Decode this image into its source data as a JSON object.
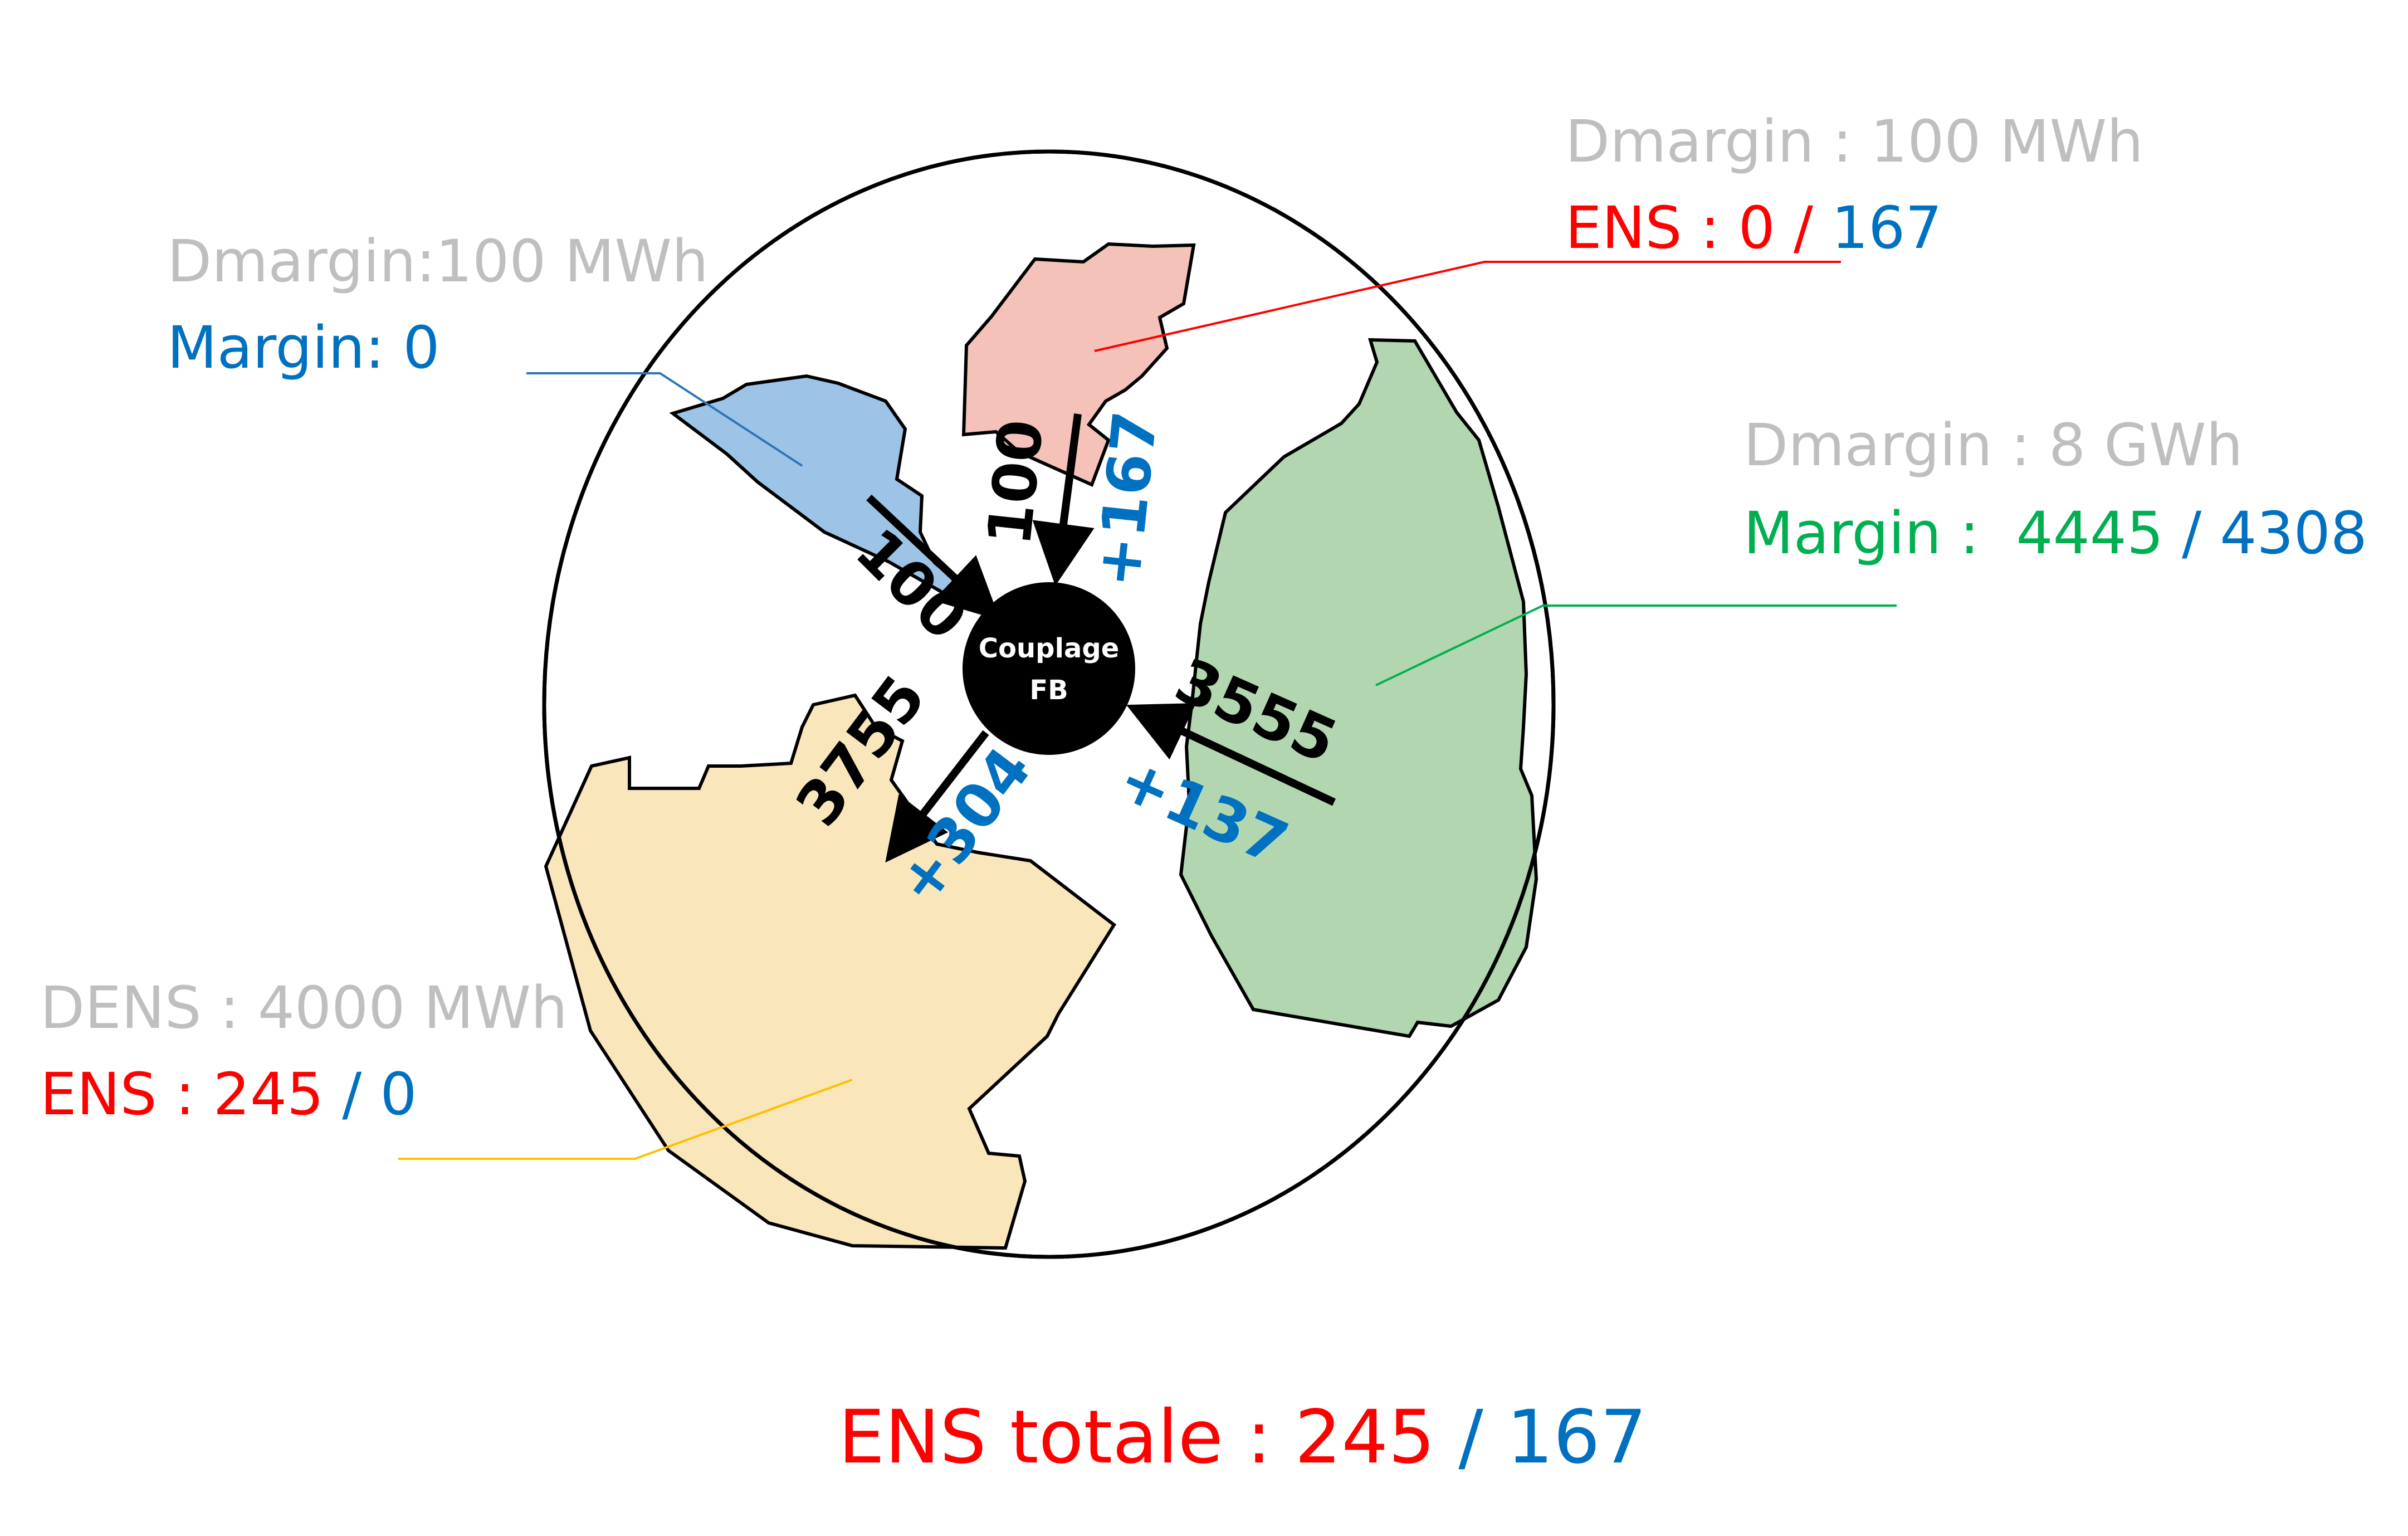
{
  "colors": {
    "grey": "#bfbfbf",
    "red": "#ff0000",
    "blue": "#0070c0",
    "green": "#00b050",
    "black": "#000000",
    "zone_blue": "#9dc3e6",
    "zone_pink": "#f4c2b8",
    "zone_green": "#b2d7b0",
    "zone_yellow": "#f9e6bb",
    "leader_blue": "#2e75b6",
    "leader_red": "#ff0000",
    "leader_green": "#00b050",
    "leader_yellow": "#ffc000"
  },
  "hub": {
    "line1": "Couplage",
    "line2": "FB"
  },
  "zones": {
    "blue": {
      "dmargin": "Dmargin:100 MWh",
      "margin_label": "Margin: 0"
    },
    "pink": {
      "dmargin": "Dmargin : 100 MWh",
      "ens_prefix": "ENS : 0 / ",
      "ens_value": "167"
    },
    "green": {
      "dmargin": "Dmargin : 8 GWh",
      "margin_prefix": "Margin :  ",
      "margin_value1": "4445",
      "margin_sep": " / ",
      "margin_value2": "4308"
    },
    "yellow": {
      "dens": "DENS : 4000 MWh",
      "ens_prefix": "ENS : 245",
      "ens_sep": " / ",
      "ens_value": "0"
    }
  },
  "flows": {
    "blue_black": "100",
    "pink_black": "100",
    "pink_blue": "+167",
    "green_black": "3555",
    "green_blue": "+137",
    "yellow_black": "3755",
    "yellow_blue": "+304"
  },
  "total": {
    "label": "ENS totale : 245",
    "sep": " / ",
    "value": "167"
  }
}
